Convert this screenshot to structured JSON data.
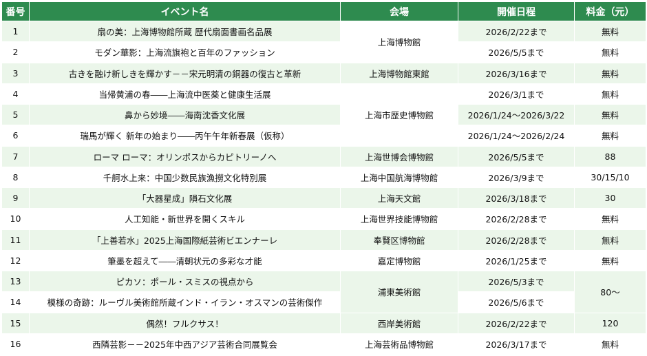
{
  "headers": {
    "no": "番号",
    "event": "イベント名",
    "venue": "会場",
    "dates": "開催日程",
    "fee": "料金（元）"
  },
  "rows": [
    {
      "no": "1",
      "event": "扇の美：上海博物館所蔵 歴代扇面書画名品展",
      "venue": "上海博物館",
      "dates": "2026/2/22まで",
      "fee": "無料"
    },
    {
      "no": "2",
      "event": "モダン華影：上海流旗袍と百年のファッション",
      "venue": "上海博物館",
      "dates": "2026/5/5まで",
      "fee": "無料"
    },
    {
      "no": "3",
      "event": "古きを融け新しきを輝かす－－宋元明清の銅器の復古と革新",
      "venue": "上海博物館東館",
      "dates": "2026/3/16まで",
      "fee": "無料"
    },
    {
      "no": "4",
      "event": "当帰黄浦の春――上海流中医薬と健康生活展",
      "venue": "上海市歴史博物館",
      "dates": "2026/3/1まで",
      "fee": "無料"
    },
    {
      "no": "5",
      "event": "鼻から妙境――海南沈香文化展",
      "venue": "上海市歴史博物館",
      "dates": "2026/1/24～2026/3/22",
      "fee": "無料"
    },
    {
      "no": "6",
      "event": "瑞馬が輝く 新年の始まり――丙午午年新春展（仮称）",
      "venue": "上海市歴史博物館",
      "dates": "2026/1/24～2026/2/24",
      "fee": "無料"
    },
    {
      "no": "7",
      "event": "ローマ ローマ：オリンポスからカピトリーノへ",
      "venue": "上海世博会博物館",
      "dates": "2026/5/5まで",
      "fee": "88"
    },
    {
      "no": "8",
      "event": "千舸水上来：中国少数民族漁撈文化特別展",
      "venue": "上海中国航海博物館",
      "dates": "2026/3/9まで",
      "fee": "30/15/10"
    },
    {
      "no": "9",
      "event": "「大器星成」隕石文化展",
      "venue": "上海天文館",
      "dates": "2026/3/18まで",
      "fee": "30"
    },
    {
      "no": "10",
      "event": "人工知能・新世界を開くスキル",
      "venue": "上海世界技能博物館",
      "dates": "2026/2/28まで",
      "fee": "無料"
    },
    {
      "no": "11",
      "event": "「上善若水」2025上海国際紙芸術ビエンナーレ",
      "venue": "奉賢区博物館",
      "dates": "2026/2/28まで",
      "fee": "無料"
    },
    {
      "no": "12",
      "event": "筆墨を超えて――清朝状元の多彩な才能",
      "venue": "嘉定博物館",
      "dates": "2026/1/25まで",
      "fee": "無料"
    },
    {
      "no": "13",
      "event": "ピカソ：ポール・スミスの視点から",
      "venue": "浦東美術館",
      "dates": "2026/5/3まで",
      "fee": "80～"
    },
    {
      "no": "14",
      "event": "模様の奇跡：ルーヴル美術館所蔵インド・イラン・オスマンの芸術傑作",
      "venue": "浦東美術館",
      "dates": "2026/5/6まで",
      "fee": "80～"
    },
    {
      "no": "15",
      "event": "偶然！フルクサス！",
      "venue": "西岸美術館",
      "dates": "2026/2/22まで",
      "fee": "120"
    },
    {
      "no": "16",
      "event": "西隣芸影－－2025年中西アジア芸術合同展覧会",
      "venue": "上海芸術品博物館",
      "dates": "2026/3/17まで",
      "fee": "無料"
    }
  ],
  "colors": {
    "header_bg": "#2e8b4f",
    "header_text": "#ffffff",
    "row_green": "#ebf6ea",
    "row_white": "#ffffff"
  }
}
